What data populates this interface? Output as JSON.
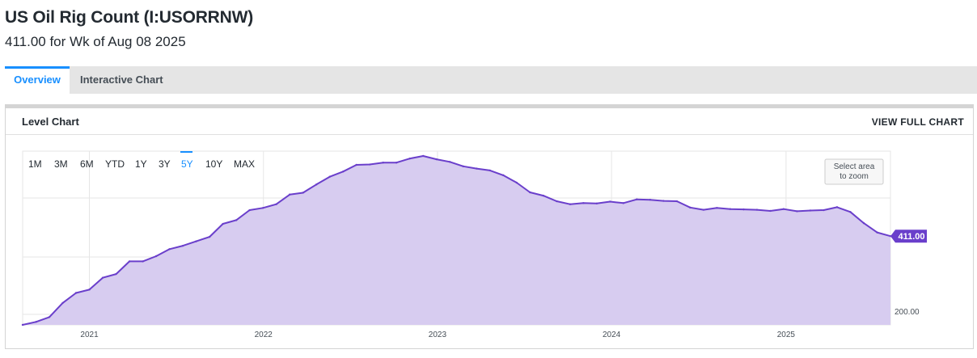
{
  "header": {
    "title": "US Oil Rig Count (I:USORRNW)",
    "subtitle": "411.00 for Wk of Aug 08 2025"
  },
  "tabs": [
    {
      "label": "Overview",
      "active": true
    },
    {
      "label": "Interactive Chart",
      "active": false
    }
  ],
  "panel": {
    "title": "Level Chart",
    "view_full_label": "VIEW FULL CHART"
  },
  "range_buttons": [
    "1M",
    "3M",
    "6M",
    "YTD",
    "1Y",
    "3Y",
    "5Y",
    "10Y",
    "MAX"
  ],
  "active_range": "5Y",
  "zoom_hint": [
    "Select area",
    "to zoom"
  ],
  "colors": {
    "accent": "#188fff",
    "line": "#6a3fcb",
    "fill": "#d7ccf0",
    "label_bg": "#6a3fcb"
  },
  "chart_data": {
    "type": "area",
    "title": "",
    "xlabel": "",
    "ylabel": "",
    "x_tick_labels": [
      "2021",
      "2022",
      "2023",
      "2024",
      "2025"
    ],
    "y_tick_labels": [
      "200.00"
    ],
    "last_value_label": "411.00",
    "ylim": [
      172,
      640
    ],
    "x": [
      "2020-08-14",
      "2020-09-11",
      "2020-10-09",
      "2020-11-06",
      "2020-12-04",
      "2021-01-01",
      "2021-01-29",
      "2021-02-26",
      "2021-03-26",
      "2021-04-23",
      "2021-05-21",
      "2021-06-18",
      "2021-07-16",
      "2021-08-13",
      "2021-09-10",
      "2021-10-08",
      "2021-11-05",
      "2021-12-03",
      "2021-12-31",
      "2022-01-28",
      "2022-02-25",
      "2022-03-25",
      "2022-04-22",
      "2022-05-20",
      "2022-06-17",
      "2022-07-15",
      "2022-08-12",
      "2022-09-09",
      "2022-10-07",
      "2022-11-04",
      "2022-12-02",
      "2022-12-30",
      "2023-01-27",
      "2023-02-24",
      "2023-03-24",
      "2023-04-21",
      "2023-05-19",
      "2023-06-16",
      "2023-07-14",
      "2023-08-11",
      "2023-09-08",
      "2023-10-06",
      "2023-11-03",
      "2023-12-01",
      "2023-12-29",
      "2024-01-26",
      "2024-02-23",
      "2024-03-22",
      "2024-04-19",
      "2024-05-17",
      "2024-06-14",
      "2024-07-12",
      "2024-08-09",
      "2024-09-06",
      "2024-10-04",
      "2024-11-01",
      "2024-11-29",
      "2024-12-27",
      "2025-01-24",
      "2025-02-21",
      "2025-03-21",
      "2025-04-18",
      "2025-05-16",
      "2025-06-13",
      "2025-07-11",
      "2025-08-08"
    ],
    "series": [
      {
        "values": [
          172,
          180,
          193,
          231,
          258,
          267,
          299,
          309,
          343,
          343,
          357,
          376,
          385,
          397,
          409,
          444,
          454,
          481,
          487,
          497,
          523,
          528,
          550,
          571,
          585,
          603,
          604,
          609,
          609,
          620,
          627,
          618,
          611,
          599,
          593,
          588,
          575,
          555,
          529,
          520,
          505,
          497,
          500,
          499,
          504,
          500,
          510,
          509,
          506,
          505,
          488,
          482,
          487,
          484,
          483,
          482,
          479,
          484,
          478,
          480,
          481,
          489,
          476,
          446,
          421,
          411
        ]
      }
    ]
  }
}
